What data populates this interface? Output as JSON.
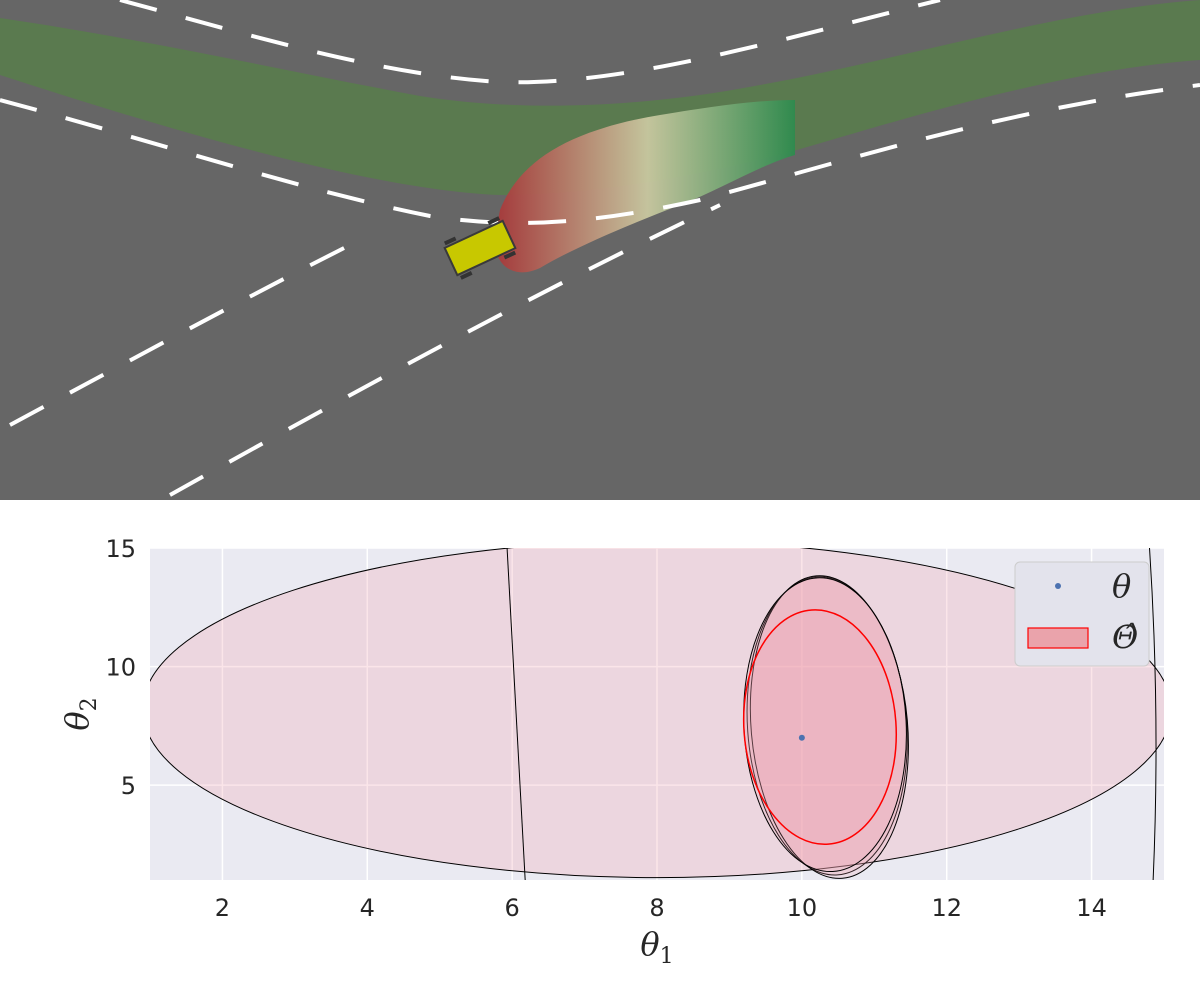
{
  "scene": {
    "road_color": "#666666",
    "lane_marking_color": "#ffffff",
    "corridor_color": "#4f7f45",
    "reachable_set_colors": [
      "#a83c3c",
      "#c9c8a0",
      "#2e8b4e"
    ],
    "vehicle_color": "#c8c800"
  },
  "chart_data": {
    "type": "scatter",
    "xlabel": "θ1",
    "ylabel": "θ2",
    "xlim": [
      1,
      15
    ],
    "ylim": [
      1,
      15
    ],
    "xticks": [
      "2",
      "4",
      "6",
      "8",
      "10",
      "12",
      "14"
    ],
    "yticks": [
      "5",
      "10",
      "15"
    ],
    "grid": true,
    "background": "#eaeaf2",
    "legend_position": "top-right",
    "legend": [
      {
        "label": "θ",
        "marker": "point",
        "color": "#4c72b0"
      },
      {
        "label": "Θ̂",
        "marker": "patch",
        "color": "#ff0000"
      }
    ],
    "theta_point": {
      "x": 10,
      "y": 7
    },
    "confidence_sets": [
      {
        "cx": 8.0,
        "cy": 8.2,
        "rx": 7.1,
        "ry": 7.1,
        "angle": 0,
        "color": "#000000"
      },
      {
        "cx": 10.35,
        "cy": 7.5,
        "rx": 1.1,
        "ry": 6.3,
        "angle": 4,
        "color": "#000000"
      },
      {
        "cx": 10.38,
        "cy": 7.45,
        "rx": 1.08,
        "ry": 6.4,
        "angle": 5,
        "color": "#000000"
      },
      {
        "cx": 10.32,
        "cy": 7.55,
        "rx": 1.12,
        "ry": 6.2,
        "angle": 3,
        "color": "#000000"
      },
      {
        "cx": 10.25,
        "cy": 7.45,
        "rx": 1.05,
        "ry": 4.95,
        "angle": 4,
        "color": "#ff0000"
      }
    ],
    "boundary_curves": [
      {
        "points": [
          [
            5.93,
            15.0
          ],
          [
            6.05,
            8.0
          ],
          [
            6.18,
            1.0
          ]
        ]
      },
      {
        "points": [
          [
            14.8,
            15.0
          ],
          [
            14.95,
            8.0
          ],
          [
            14.85,
            1.0
          ]
        ]
      }
    ]
  }
}
